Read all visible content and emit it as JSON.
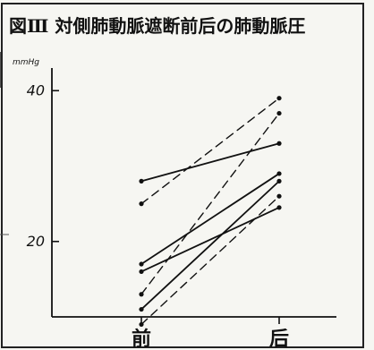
{
  "chart_data": {
    "type": "line",
    "title": "図Ⅲ 対側肺動脈遮断前后の肺動脈圧",
    "ylabel": "mmHg",
    "xlabel": "",
    "categories": [
      "前",
      "后"
    ],
    "ylim": [
      10,
      43
    ],
    "yticks": [
      20,
      40
    ],
    "grid": false,
    "legend": "none",
    "line_color": "#111111",
    "series": [
      {
        "values": [
          28,
          33
        ],
        "style": "solid"
      },
      {
        "values": [
          25,
          39
        ],
        "style": "dashed"
      },
      {
        "values": [
          17,
          29
        ],
        "style": "solid"
      },
      {
        "values": [
          16,
          24.5
        ],
        "style": "solid"
      },
      {
        "values": [
          13,
          37
        ],
        "style": "dashed"
      },
      {
        "values": [
          11,
          28
        ],
        "style": "solid"
      },
      {
        "values": [
          9,
          26
        ],
        "style": "dashed"
      }
    ]
  }
}
